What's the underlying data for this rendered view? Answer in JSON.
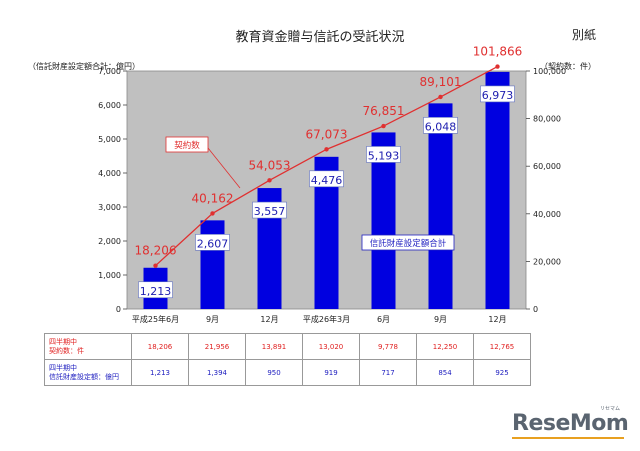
{
  "header": {
    "title": "教育資金贈与信託の受託状況",
    "annex": "別紙"
  },
  "chart_data": {
    "type": "bar+line",
    "categories": [
      "平成25年6月",
      "9月",
      "12月",
      "平成26年3月",
      "6月",
      "9月",
      "12月"
    ],
    "left_axis": {
      "label": "（信託財産設定額合計：億円）",
      "min": 0,
      "max": 7000,
      "ticks": [
        "0",
        "1,000",
        "2,000",
        "3,000",
        "4,000",
        "5,000",
        "6,000",
        "7,000"
      ]
    },
    "right_axis": {
      "label": "（契約数：件）",
      "min": 0,
      "max": 100000,
      "ticks": [
        "0",
        "20,000",
        "40,000",
        "60,000",
        "80,000",
        "100,000"
      ]
    },
    "bar_series": {
      "name": "信託財産設定額合計",
      "color": "#0000e0",
      "values": [
        1213,
        2607,
        3557,
        4476,
        5193,
        6048,
        6973
      ],
      "labels": [
        "1,213",
        "2,607",
        "3,557",
        "4,476",
        "5,193",
        "6,048",
        "6,973"
      ]
    },
    "line_series": {
      "name": "契約数",
      "color": "#e03030",
      "values": [
        18206,
        40162,
        54053,
        67073,
        76851,
        89101,
        101866
      ],
      "labels": [
        "18,206",
        "40,162",
        "54,053",
        "67,073",
        "76,851",
        "89,101",
        "101,866"
      ]
    },
    "grid": false,
    "plot_background": "#c0c0c0"
  },
  "table": {
    "row1_header": [
      "四半期中",
      "契約数：件"
    ],
    "row1_values": [
      "18,206",
      "21,956",
      "13,891",
      "13,020",
      "9,778",
      "12,250",
      "12,765"
    ],
    "row2_header": [
      "四半期中",
      "信託財産設定額：億円"
    ],
    "row2_values": [
      "1,213",
      "1,394",
      "950",
      "919",
      "717",
      "854",
      "925"
    ]
  },
  "logo": {
    "text": "ReseMom",
    "sub": "リセマム"
  }
}
